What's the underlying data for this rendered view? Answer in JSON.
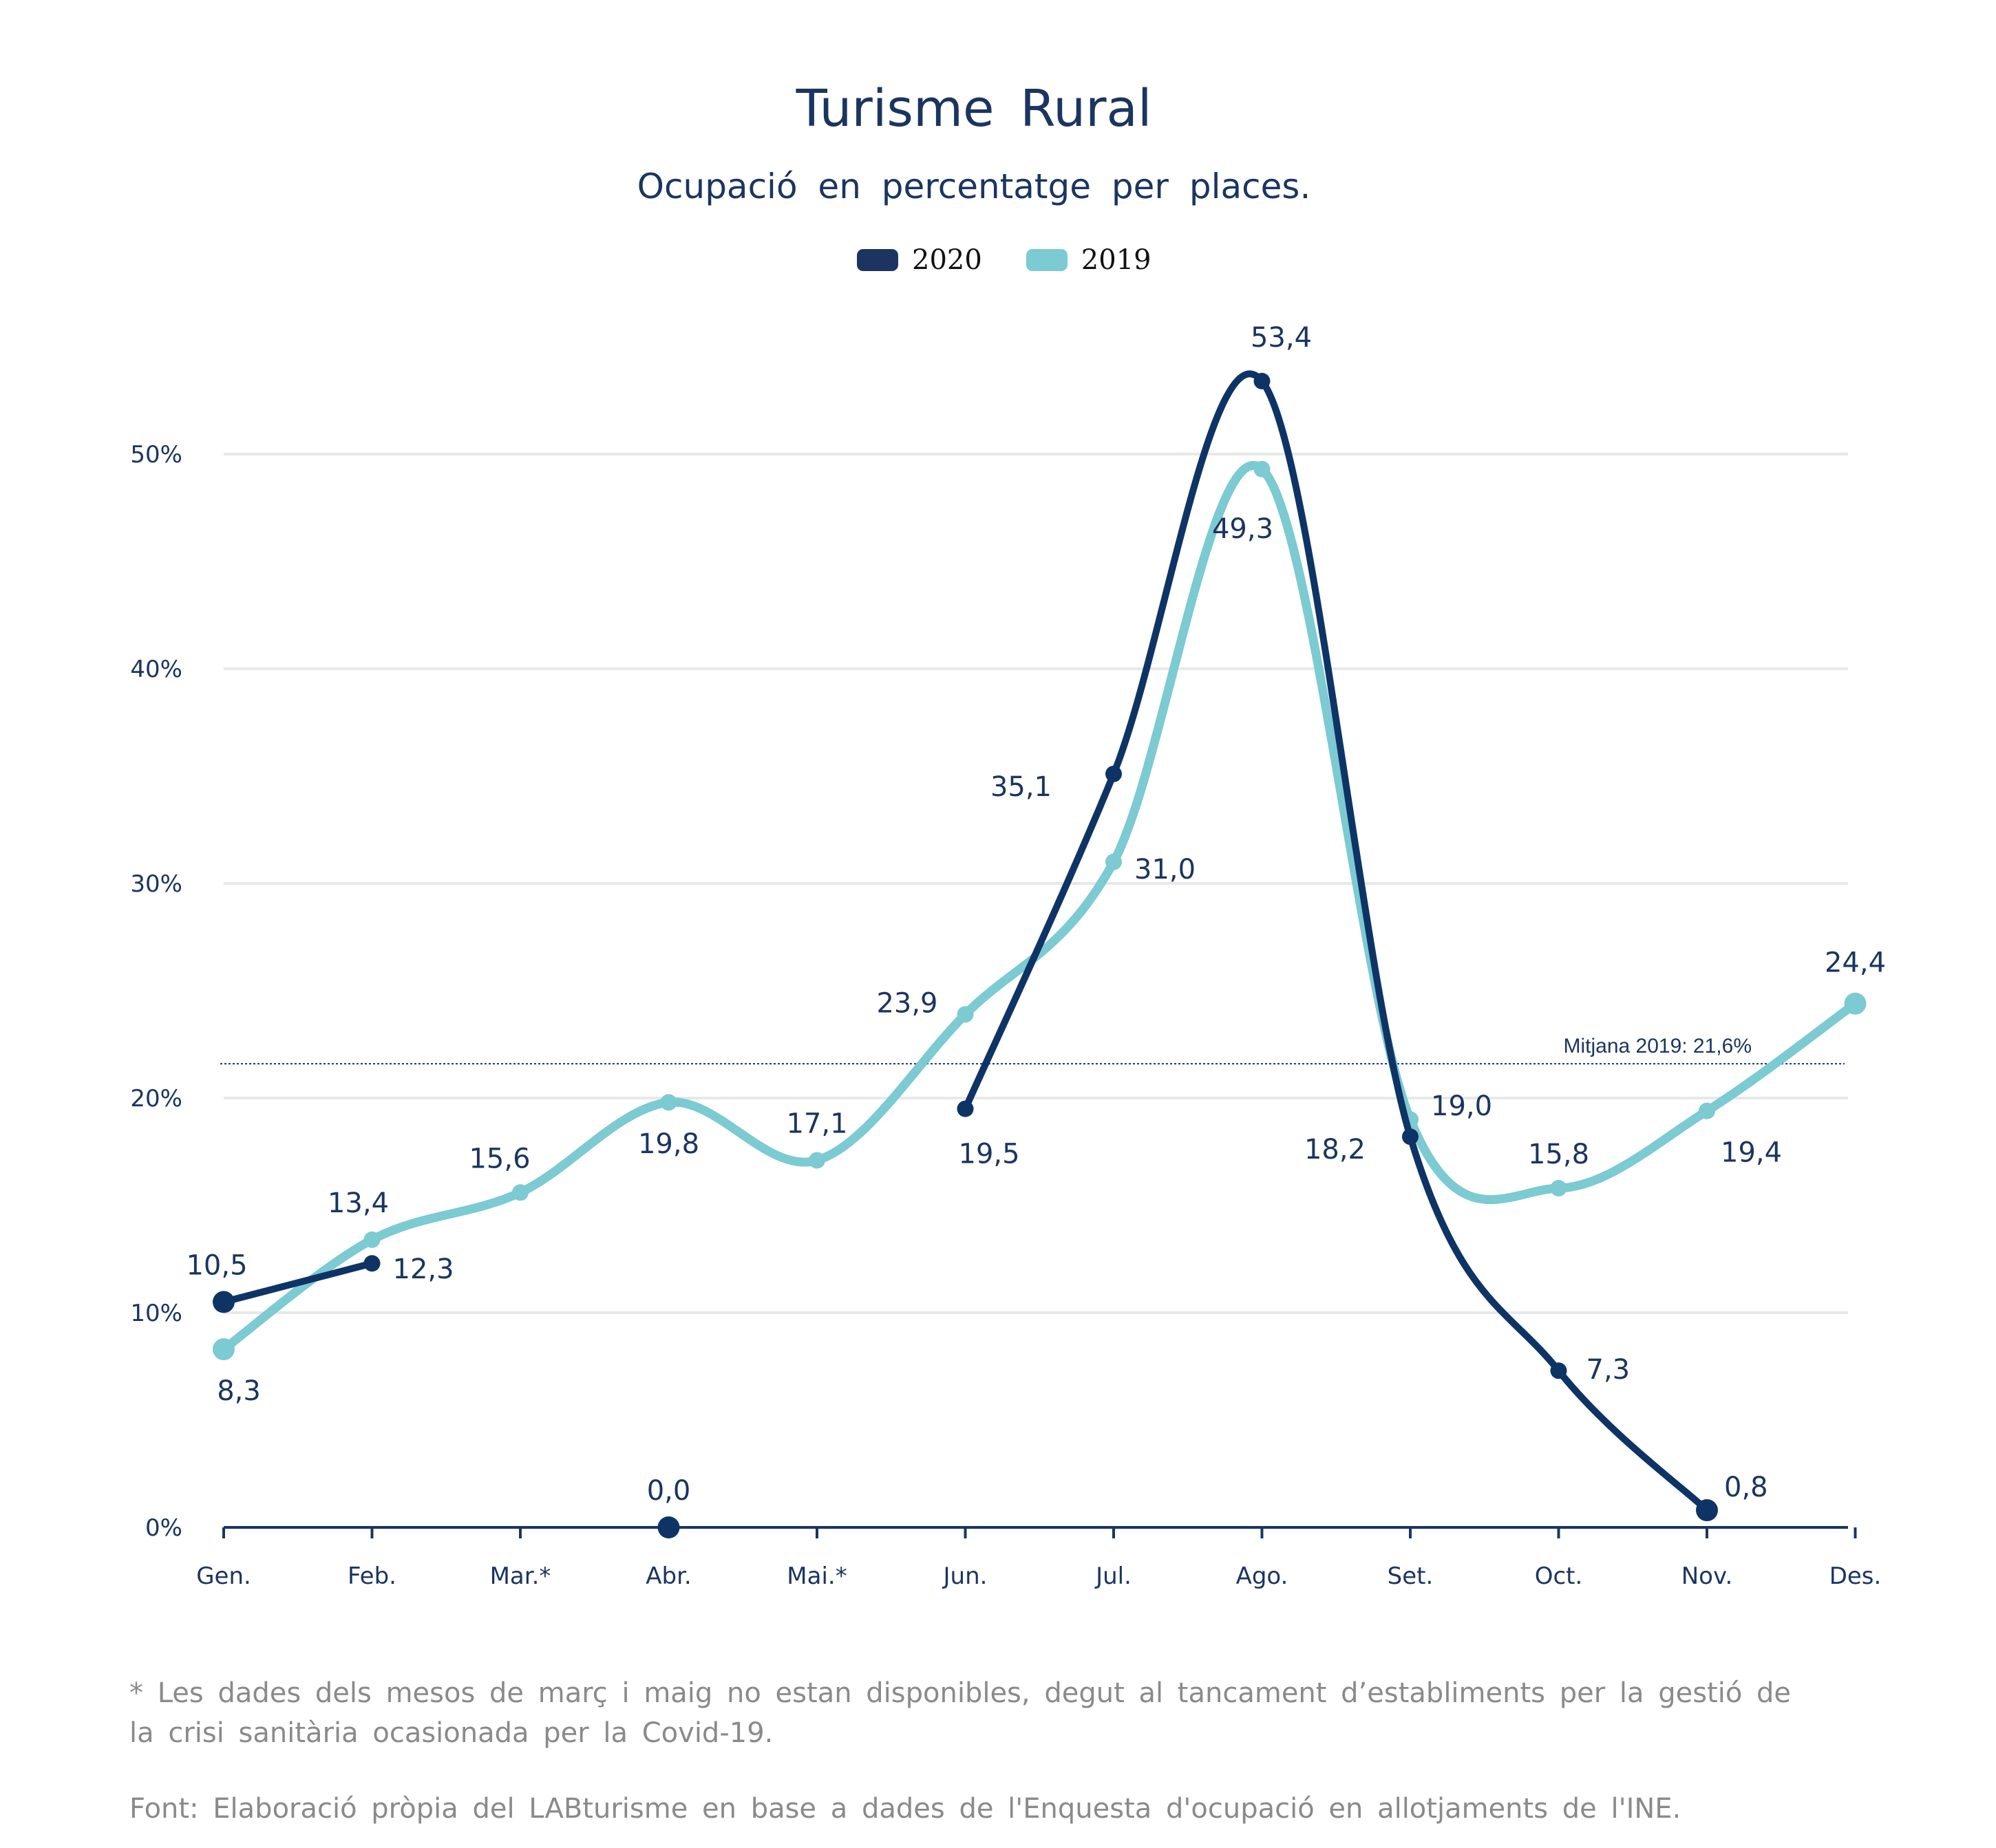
{
  "title": "Turisme  Rural",
  "subtitle": "Ocupació  en  percentatge  per  places.",
  "legend": [
    {
      "label": "2020",
      "color": "#1b3560"
    },
    {
      "label": "2019",
      "color": "#7ccad2"
    }
  ],
  "chart_data": {
    "type": "line",
    "categories": [
      "Gen.",
      "Feb.",
      "Mar.*",
      "Abr.",
      "Mai.*",
      "Jun.",
      "Jul.",
      "Ago.",
      "Set.",
      "Oct.",
      "Nov.",
      "Des."
    ],
    "yticks": [
      "0%",
      "10%",
      "20%",
      "30%",
      "40%",
      "50%"
    ],
    "ylim": [
      0,
      50
    ],
    "grid": true,
    "legend_position": "top-center",
    "series": [
      {
        "name": "2020",
        "color": "#1b3560",
        "line_color": "#0e3466",
        "values": [
          10.5,
          12.3,
          null,
          0.0,
          null,
          19.5,
          35.1,
          53.4,
          18.2,
          7.3,
          0.8,
          null
        ],
        "labels": [
          "10,5",
          "12,3",
          "",
          "0,0",
          "",
          "19,5",
          "35,1",
          "53,4",
          "18,2",
          "7,3",
          "0,8",
          ""
        ]
      },
      {
        "name": "2019",
        "color": "#7ccad2",
        "line_color": "#7ccad2",
        "values": [
          8.3,
          13.4,
          15.6,
          19.8,
          17.1,
          23.9,
          31.0,
          49.3,
          19.0,
          15.8,
          19.4,
          24.4
        ],
        "labels": [
          "8,3",
          "13,4",
          "15,6",
          "19,8",
          "17,1",
          "23,9",
          "31,0",
          "49,3",
          "19,0",
          "15,8",
          "19,4",
          "24,4"
        ]
      }
    ],
    "reference_line": {
      "value": 21.6,
      "label": "Mitjana 2019: 21,6%"
    }
  },
  "footnote": "* Les dades dels mesos de març i maig no estan disponibles, degut al tancament d’establiments per la gestió de la crisi sanitària ocasionada per la Covid-19.",
  "source": "Font: Elaboració pròpia del LABturisme en base a dades de l'Enquesta d'ocupació en allotjaments de l'INE."
}
